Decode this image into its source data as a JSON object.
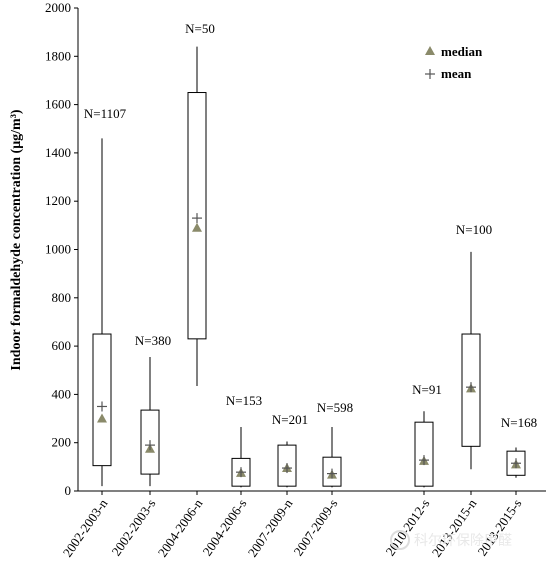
{
  "chart_data": {
    "type": "box",
    "ylabel": "Indoor formaldehyde concentration (μg/m³)",
    "ylim": [
      0,
      2000
    ],
    "yticks": [
      0,
      200,
      400,
      600,
      800,
      1000,
      1200,
      1400,
      1600,
      1800,
      2000
    ],
    "legend": {
      "median": "median",
      "mean": "mean",
      "position": "top-right"
    },
    "colors": {
      "median": "#8a8a6a",
      "mean": "#555555",
      "box": "#000000"
    },
    "categories": [
      "2002-2003-n",
      "2002-2003-s",
      "2004-2006-n",
      "2004-2006-s",
      "2007-2009-n",
      "2007-2009-s",
      "2010-2012-s",
      "2013-2015-n",
      "2013-2015-s"
    ],
    "category_display": [
      "2002-2003-n",
      "2002-2003-s",
      "2004-2006-n",
      "2004-2006-s",
      "2007-2009-n",
      "2007-2009-s",
      "2010-2012-s",
      "2013-2015-n",
      "2013-2015-s"
    ],
    "boxes": [
      {
        "category": "2002-2003-n",
        "n": "N=1107",
        "min": 20,
        "q1": 105,
        "median": 300,
        "mean": 350,
        "q3": 650,
        "max": 1460
      },
      {
        "category": "2002-2003-s",
        "n": "N=380",
        "min": 20,
        "q1": 70,
        "median": 175,
        "mean": 190,
        "q3": 335,
        "max": 555
      },
      {
        "category": "2004-2006-n",
        "n": "N=50",
        "min": 435,
        "q1": 630,
        "median": 1090,
        "mean": 1130,
        "q3": 1650,
        "max": 1840
      },
      {
        "category": "2004-2006-s",
        "n": "N=153",
        "min": 15,
        "q1": 20,
        "median": 75,
        "mean": 78,
        "q3": 135,
        "max": 265
      },
      {
        "category": "2007-2009-n",
        "n": "N=201",
        "min": 15,
        "q1": 20,
        "median": 95,
        "mean": 95,
        "q3": 190,
        "max": 205
      },
      {
        "category": "2007-2009-s",
        "n": "N=598",
        "min": 15,
        "q1": 20,
        "median": 68,
        "mean": 72,
        "q3": 140,
        "max": 265
      },
      {
        "category": "2010-2012-s",
        "n": "N=91",
        "min": 15,
        "q1": 20,
        "median": 125,
        "mean": 128,
        "q3": 285,
        "max": 330
      },
      {
        "category": "2013-2015-n",
        "n": "N=100",
        "min": 90,
        "q1": 185,
        "median": 425,
        "mean": 430,
        "q3": 650,
        "max": 990
      },
      {
        "category": "2013-2015-s",
        "n": "N=168",
        "min": 55,
        "q1": 65,
        "median": 110,
        "mean": 115,
        "q3": 165,
        "max": 180
      }
    ]
  },
  "watermark": "科尔环保除甲醛"
}
